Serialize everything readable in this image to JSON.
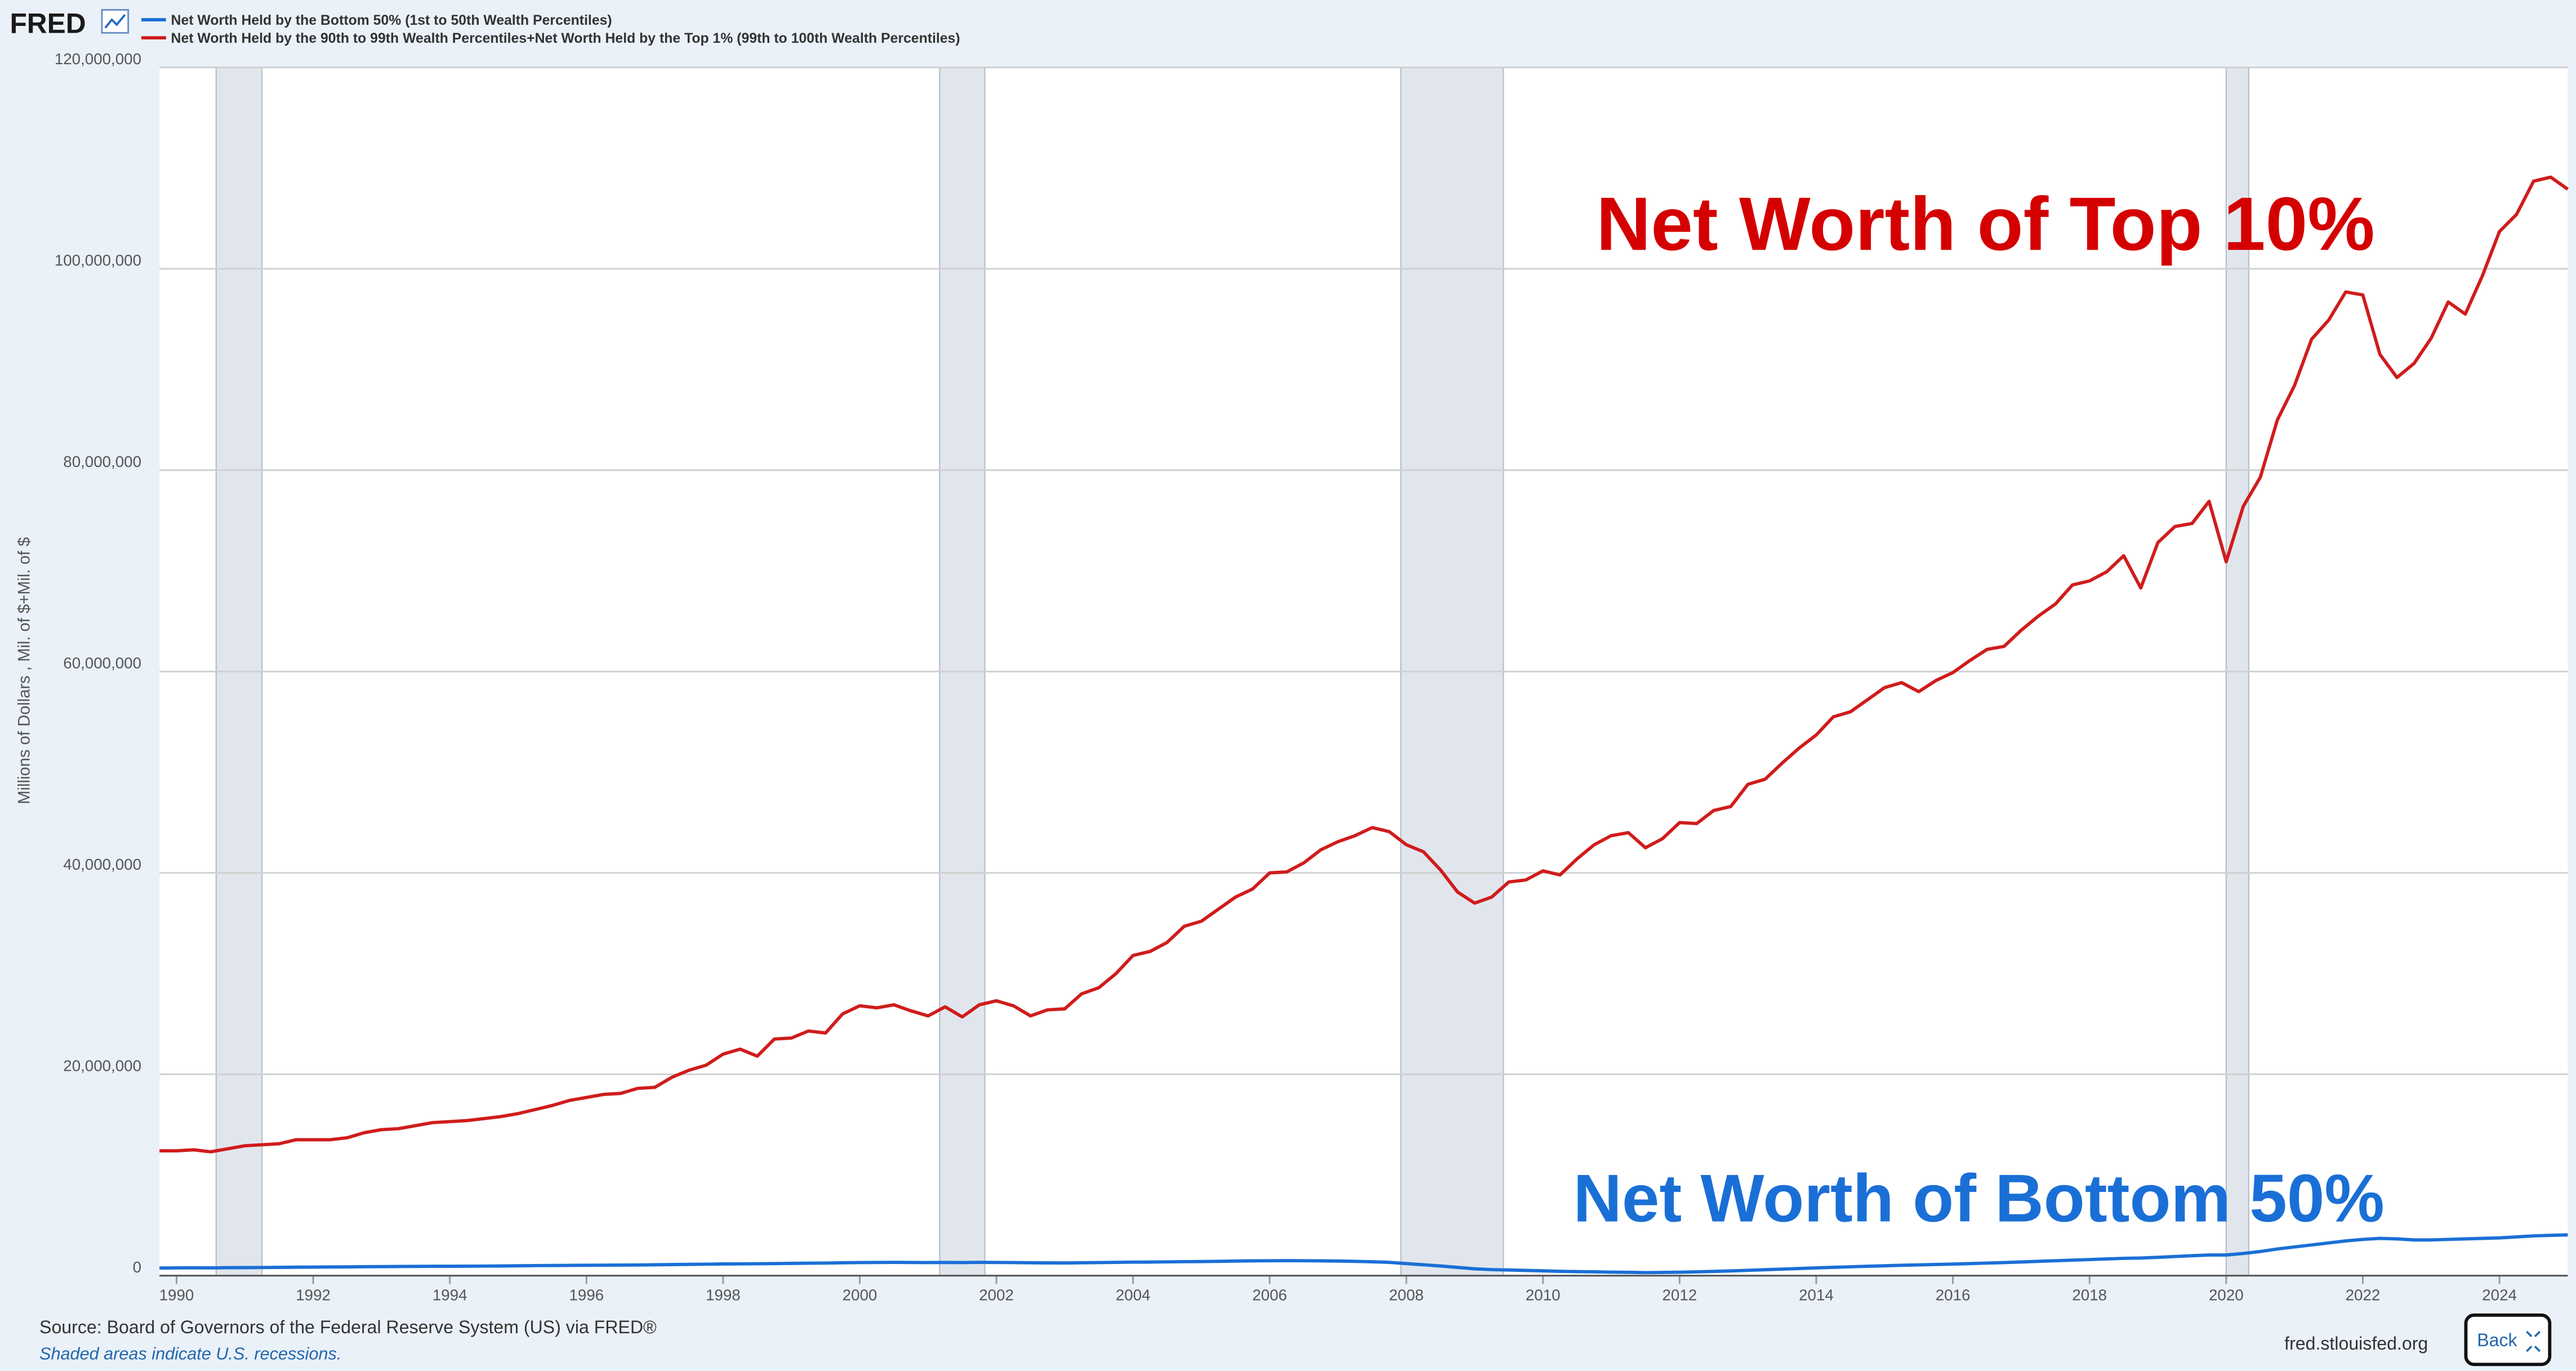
{
  "logo": "FRED",
  "source": "Source: Board of Governors of the Federal Reserve System (US) via FRED®",
  "note": "Shaded areas indicate U.S. recessions.",
  "site": "fred.stlouisfed.org",
  "button": "Back",
  "chart_data": {
    "type": "line",
    "y_label": "Millions of Dollars , Mil. of $+Mil. of $",
    "annotations": [
      {
        "text": "Net Worth of Top 10%",
        "color": "#d40000"
      },
      {
        "text": "Net Worth of Bottom 50%",
        "color": "#1a6fd6"
      }
    ],
    "grid": true,
    "xlim": [
      1989.75,
      2025.0
    ],
    "xticks": [
      1990,
      1992,
      1994,
      1996,
      1998,
      2000,
      2002,
      2004,
      2006,
      2008,
      2010,
      2012,
      2014,
      2016,
      2018,
      2020,
      2022,
      2024
    ],
    "ylim": [
      0,
      120000000
    ],
    "yticks": [
      0,
      {
        "value": 20000000,
        "label": "20,000,000"
      },
      {
        "value": 40000000,
        "label": "40,000,000"
      },
      {
        "value": 60000000,
        "label": "60,000,000"
      },
      {
        "value": 80000000,
        "label": "80,000,000"
      },
      {
        "value": 100000000,
        "label": "100,000,000"
      },
      {
        "value": 120000000,
        "label": "120,000,000"
      }
    ],
    "recessions": [
      [
        1990.58,
        1991.25
      ],
      [
        2001.17,
        2001.83
      ],
      [
        2007.92,
        2009.42
      ],
      [
        2020.0,
        2020.33
      ]
    ],
    "x": [
      1989.75,
      1990,
      1990.25,
      1990.5,
      1990.75,
      1991,
      1991.25,
      1991.5,
      1991.75,
      1992,
      1992.25,
      1992.5,
      1992.75,
      1993,
      1993.25,
      1993.5,
      1993.75,
      1994,
      1994.25,
      1994.5,
      1994.75,
      1995,
      1995.25,
      1995.5,
      1995.75,
      1996,
      1996.25,
      1996.5,
      1996.75,
      1997,
      1997.25,
      1997.5,
      1997.75,
      1998,
      1998.25,
      1998.5,
      1998.75,
      1999,
      1999.25,
      1999.5,
      1999.75,
      2000,
      2000.25,
      2000.5,
      2000.75,
      2001,
      2001.25,
      2001.5,
      2001.75,
      2002,
      2002.25,
      2002.5,
      2002.75,
      2003,
      2003.25,
      2003.5,
      2003.75,
      2004,
      2004.25,
      2004.5,
      2004.75,
      2005,
      2005.25,
      2005.5,
      2005.75,
      2006,
      2006.25,
      2006.5,
      2006.75,
      2007,
      2007.25,
      2007.5,
      2007.75,
      2008,
      2008.25,
      2008.5,
      2008.75,
      2009,
      2009.25,
      2009.5,
      2009.75,
      2010,
      2010.25,
      2010.5,
      2010.75,
      2011,
      2011.25,
      2011.5,
      2011.75,
      2012,
      2012.25,
      2012.5,
      2012.75,
      2013,
      2013.25,
      2013.5,
      2013.75,
      2014,
      2014.25,
      2014.5,
      2014.75,
      2015,
      2015.25,
      2015.5,
      2015.75,
      2016,
      2016.25,
      2016.5,
      2016.75,
      2017,
      2017.25,
      2017.5,
      2017.75,
      2018,
      2018.25,
      2018.5,
      2018.75,
      2019,
      2019.25,
      2019.5,
      2019.75,
      2020,
      2020.25,
      2020.5,
      2020.75,
      2021,
      2021.25,
      2021.5,
      2021.75,
      2022,
      2022.25,
      2022.5,
      2022.75,
      2023,
      2023.25,
      2023.5,
      2023.75,
      2024,
      2024.25,
      2024.5,
      2024.75,
      2025
    ],
    "series": [
      {
        "name": "Net Worth Held by the Bottom 50% (1st to 50th Wealth Percentiles)",
        "color": "#1a6fd6",
        "values": [
          760000,
          770000,
          780000,
          770000,
          790000,
          800000,
          810000,
          820000,
          840000,
          850000,
          860000,
          870000,
          890000,
          900000,
          910000,
          920000,
          930000,
          930000,
          940000,
          950000,
          960000,
          980000,
          1000000,
          1010000,
          1020000,
          1030000,
          1040000,
          1050000,
          1060000,
          1080000,
          1100000,
          1120000,
          1140000,
          1160000,
          1170000,
          1180000,
          1200000,
          1220000,
          1240000,
          1250000,
          1280000,
          1300000,
          1310000,
          1320000,
          1310000,
          1300000,
          1310000,
          1300000,
          1320000,
          1310000,
          1300000,
          1280000,
          1270000,
          1260000,
          1280000,
          1300000,
          1320000,
          1340000,
          1350000,
          1370000,
          1390000,
          1400000,
          1420000,
          1450000,
          1470000,
          1480000,
          1490000,
          1480000,
          1470000,
          1450000,
          1420000,
          1380000,
          1320000,
          1200000,
          1080000,
          960000,
          820000,
          680000,
          600000,
          560000,
          520000,
          480000,
          430000,
          400000,
          380000,
          350000,
          330000,
          300000,
          320000,
          340000,
          380000,
          420000,
          470000,
          530000,
          590000,
          650000,
          710000,
          770000,
          830000,
          880000,
          930000,
          980000,
          1030000,
          1070000,
          1110000,
          1150000,
          1200000,
          1250000,
          1300000,
          1360000,
          1420000,
          1480000,
          1540000,
          1600000,
          1660000,
          1720000,
          1750000,
          1820000,
          1900000,
          1980000,
          2050000,
          2050000,
          2200000,
          2400000,
          2650000,
          2850000,
          3050000,
          3250000,
          3450000,
          3600000,
          3700000,
          3650000,
          3550000,
          3550000,
          3600000,
          3650000,
          3700000,
          3750000,
          3850000,
          3950000,
          4000000,
          4050000
        ]
      },
      {
        "name": "Net Worth Held by the 90th to 99th Wealth Percentiles+Net Worth Held by the Top 1% (99th to 100th Wealth Percentiles)",
        "color": "#d01c1c",
        "values": [
          12400000,
          12400000,
          12500000,
          12300000,
          12600000,
          12900000,
          13000000,
          13100000,
          13500000,
          13500000,
          13500000,
          13700000,
          14200000,
          14500000,
          14600000,
          14900000,
          15200000,
          15300000,
          15400000,
          15600000,
          15800000,
          16100000,
          16500000,
          16900000,
          17400000,
          17700000,
          18000000,
          18100000,
          18600000,
          18700000,
          19700000,
          20400000,
          20900000,
          22000000,
          22500000,
          21800000,
          23500000,
          23600000,
          24300000,
          24100000,
          26000000,
          26800000,
          26600000,
          26900000,
          26300000,
          25800000,
          26700000,
          25700000,
          26900000,
          27300000,
          26800000,
          25800000,
          26400000,
          26500000,
          28000000,
          28600000,
          30000000,
          31800000,
          32200000,
          33100000,
          34700000,
          35200000,
          36400000,
          37600000,
          38400000,
          40000000,
          40100000,
          41000000,
          42300000,
          43100000,
          43700000,
          44500000,
          44100000,
          42800000,
          42100000,
          40300000,
          38100000,
          37000000,
          37600000,
          39100000,
          39300000,
          40200000,
          39800000,
          41400000,
          42800000,
          43700000,
          44000000,
          42500000,
          43400000,
          45000000,
          44900000,
          46200000,
          46600000,
          48800000,
          49300000,
          50900000,
          52400000,
          53700000,
          55500000,
          56000000,
          57200000,
          58400000,
          58900000,
          58000000,
          59100000,
          59900000,
          61100000,
          62200000,
          62500000,
          64100000,
          65500000,
          66700000,
          68600000,
          69000000,
          69900000,
          71500000,
          68300000,
          72800000,
          74400000,
          74700000,
          76900000,
          70900000,
          76400000,
          79300000,
          85000000,
          88400000,
          93000000,
          94900000,
          97700000,
          97400000,
          91500000,
          89200000,
          90600000,
          93100000,
          96700000,
          95500000,
          99300000,
          103700000,
          105400000,
          108700000,
          109100000,
          107900000
        ]
      }
    ]
  }
}
